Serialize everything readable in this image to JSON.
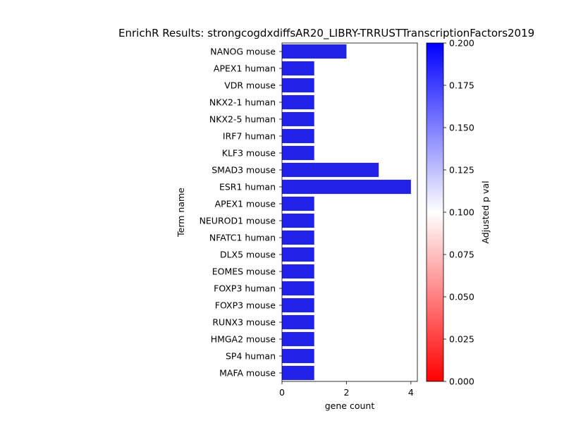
{
  "chart_data": {
    "type": "bar",
    "orientation": "horizontal",
    "title": "EnrichR Results: strongcogdxdiffsAR20_LIBRY-TRRUSTTranscriptionFactors2019",
    "xlabel": "gene count",
    "ylabel": "Term name",
    "xlim": [
      0,
      4.2
    ],
    "xticks": [
      0,
      2,
      4
    ],
    "categories": [
      "NANOG mouse",
      "APEX1 human",
      "VDR mouse",
      "NKX2-1 human",
      "NKX2-5 human",
      "IRF7 human",
      "KLF3 mouse",
      "SMAD3 mouse",
      "ESR1 human",
      "APEX1 mouse",
      "NEUROD1 mouse",
      "NFATC1 human",
      "DLX5 mouse",
      "EOMES mouse",
      "FOXP3 human",
      "FOXP3 mouse",
      "RUNX3 mouse",
      "HMGA2 mouse",
      "SP4 human",
      "MAFA mouse"
    ],
    "values": [
      2,
      1,
      1,
      1,
      1,
      1,
      1,
      3,
      4,
      1,
      1,
      1,
      1,
      1,
      1,
      1,
      1,
      1,
      1,
      1
    ],
    "bar_color": "#2121e8",
    "grid": false,
    "colorbar": {
      "label": "Adjusted p val",
      "range": [
        0.0,
        0.2
      ],
      "ticks": [
        "0.000",
        "0.025",
        "0.050",
        "0.075",
        "0.100",
        "0.125",
        "0.150",
        "0.175",
        "0.200"
      ],
      "colors": [
        "#ff0000",
        "#ffffff",
        "#0000ff"
      ]
    }
  }
}
